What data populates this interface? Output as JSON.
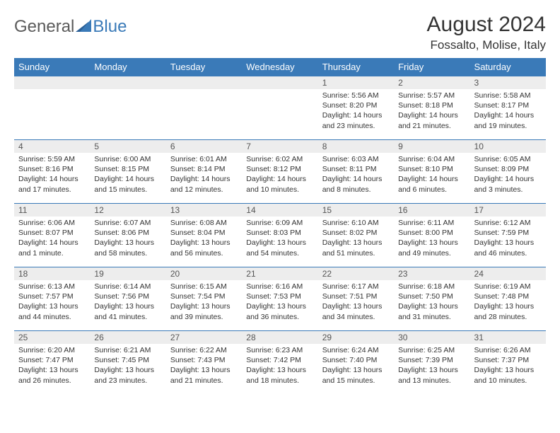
{
  "logo": {
    "word1": "General",
    "word2": "Blue"
  },
  "title": "August 2024",
  "location": "Fossalto, Molise, Italy",
  "colors": {
    "header_bg": "#3a7ab8",
    "header_text": "#ffffff",
    "daynum_bg": "#ededed",
    "border": "#3a7ab8",
    "text": "#333333",
    "logo_gray": "#5a5a5a",
    "logo_blue": "#3a7ab8"
  },
  "weekdays": [
    "Sunday",
    "Monday",
    "Tuesday",
    "Wednesday",
    "Thursday",
    "Friday",
    "Saturday"
  ],
  "weeks": [
    [
      null,
      null,
      null,
      null,
      {
        "n": "1",
        "sr": "5:56 AM",
        "ss": "8:20 PM",
        "dl": "14 hours and 23 minutes."
      },
      {
        "n": "2",
        "sr": "5:57 AM",
        "ss": "8:18 PM",
        "dl": "14 hours and 21 minutes."
      },
      {
        "n": "3",
        "sr": "5:58 AM",
        "ss": "8:17 PM",
        "dl": "14 hours and 19 minutes."
      }
    ],
    [
      {
        "n": "4",
        "sr": "5:59 AM",
        "ss": "8:16 PM",
        "dl": "14 hours and 17 minutes."
      },
      {
        "n": "5",
        "sr": "6:00 AM",
        "ss": "8:15 PM",
        "dl": "14 hours and 15 minutes."
      },
      {
        "n": "6",
        "sr": "6:01 AM",
        "ss": "8:14 PM",
        "dl": "14 hours and 12 minutes."
      },
      {
        "n": "7",
        "sr": "6:02 AM",
        "ss": "8:12 PM",
        "dl": "14 hours and 10 minutes."
      },
      {
        "n": "8",
        "sr": "6:03 AM",
        "ss": "8:11 PM",
        "dl": "14 hours and 8 minutes."
      },
      {
        "n": "9",
        "sr": "6:04 AM",
        "ss": "8:10 PM",
        "dl": "14 hours and 6 minutes."
      },
      {
        "n": "10",
        "sr": "6:05 AM",
        "ss": "8:09 PM",
        "dl": "14 hours and 3 minutes."
      }
    ],
    [
      {
        "n": "11",
        "sr": "6:06 AM",
        "ss": "8:07 PM",
        "dl": "14 hours and 1 minute."
      },
      {
        "n": "12",
        "sr": "6:07 AM",
        "ss": "8:06 PM",
        "dl": "13 hours and 58 minutes."
      },
      {
        "n": "13",
        "sr": "6:08 AM",
        "ss": "8:04 PM",
        "dl": "13 hours and 56 minutes."
      },
      {
        "n": "14",
        "sr": "6:09 AM",
        "ss": "8:03 PM",
        "dl": "13 hours and 54 minutes."
      },
      {
        "n": "15",
        "sr": "6:10 AM",
        "ss": "8:02 PM",
        "dl": "13 hours and 51 minutes."
      },
      {
        "n": "16",
        "sr": "6:11 AM",
        "ss": "8:00 PM",
        "dl": "13 hours and 49 minutes."
      },
      {
        "n": "17",
        "sr": "6:12 AM",
        "ss": "7:59 PM",
        "dl": "13 hours and 46 minutes."
      }
    ],
    [
      {
        "n": "18",
        "sr": "6:13 AM",
        "ss": "7:57 PM",
        "dl": "13 hours and 44 minutes."
      },
      {
        "n": "19",
        "sr": "6:14 AM",
        "ss": "7:56 PM",
        "dl": "13 hours and 41 minutes."
      },
      {
        "n": "20",
        "sr": "6:15 AM",
        "ss": "7:54 PM",
        "dl": "13 hours and 39 minutes."
      },
      {
        "n": "21",
        "sr": "6:16 AM",
        "ss": "7:53 PM",
        "dl": "13 hours and 36 minutes."
      },
      {
        "n": "22",
        "sr": "6:17 AM",
        "ss": "7:51 PM",
        "dl": "13 hours and 34 minutes."
      },
      {
        "n": "23",
        "sr": "6:18 AM",
        "ss": "7:50 PM",
        "dl": "13 hours and 31 minutes."
      },
      {
        "n": "24",
        "sr": "6:19 AM",
        "ss": "7:48 PM",
        "dl": "13 hours and 28 minutes."
      }
    ],
    [
      {
        "n": "25",
        "sr": "6:20 AM",
        "ss": "7:47 PM",
        "dl": "13 hours and 26 minutes."
      },
      {
        "n": "26",
        "sr": "6:21 AM",
        "ss": "7:45 PM",
        "dl": "13 hours and 23 minutes."
      },
      {
        "n": "27",
        "sr": "6:22 AM",
        "ss": "7:43 PM",
        "dl": "13 hours and 21 minutes."
      },
      {
        "n": "28",
        "sr": "6:23 AM",
        "ss": "7:42 PM",
        "dl": "13 hours and 18 minutes."
      },
      {
        "n": "29",
        "sr": "6:24 AM",
        "ss": "7:40 PM",
        "dl": "13 hours and 15 minutes."
      },
      {
        "n": "30",
        "sr": "6:25 AM",
        "ss": "7:39 PM",
        "dl": "13 hours and 13 minutes."
      },
      {
        "n": "31",
        "sr": "6:26 AM",
        "ss": "7:37 PM",
        "dl": "13 hours and 10 minutes."
      }
    ]
  ],
  "labels": {
    "sunrise": "Sunrise: ",
    "sunset": "Sunset: ",
    "daylight": "Daylight: "
  }
}
